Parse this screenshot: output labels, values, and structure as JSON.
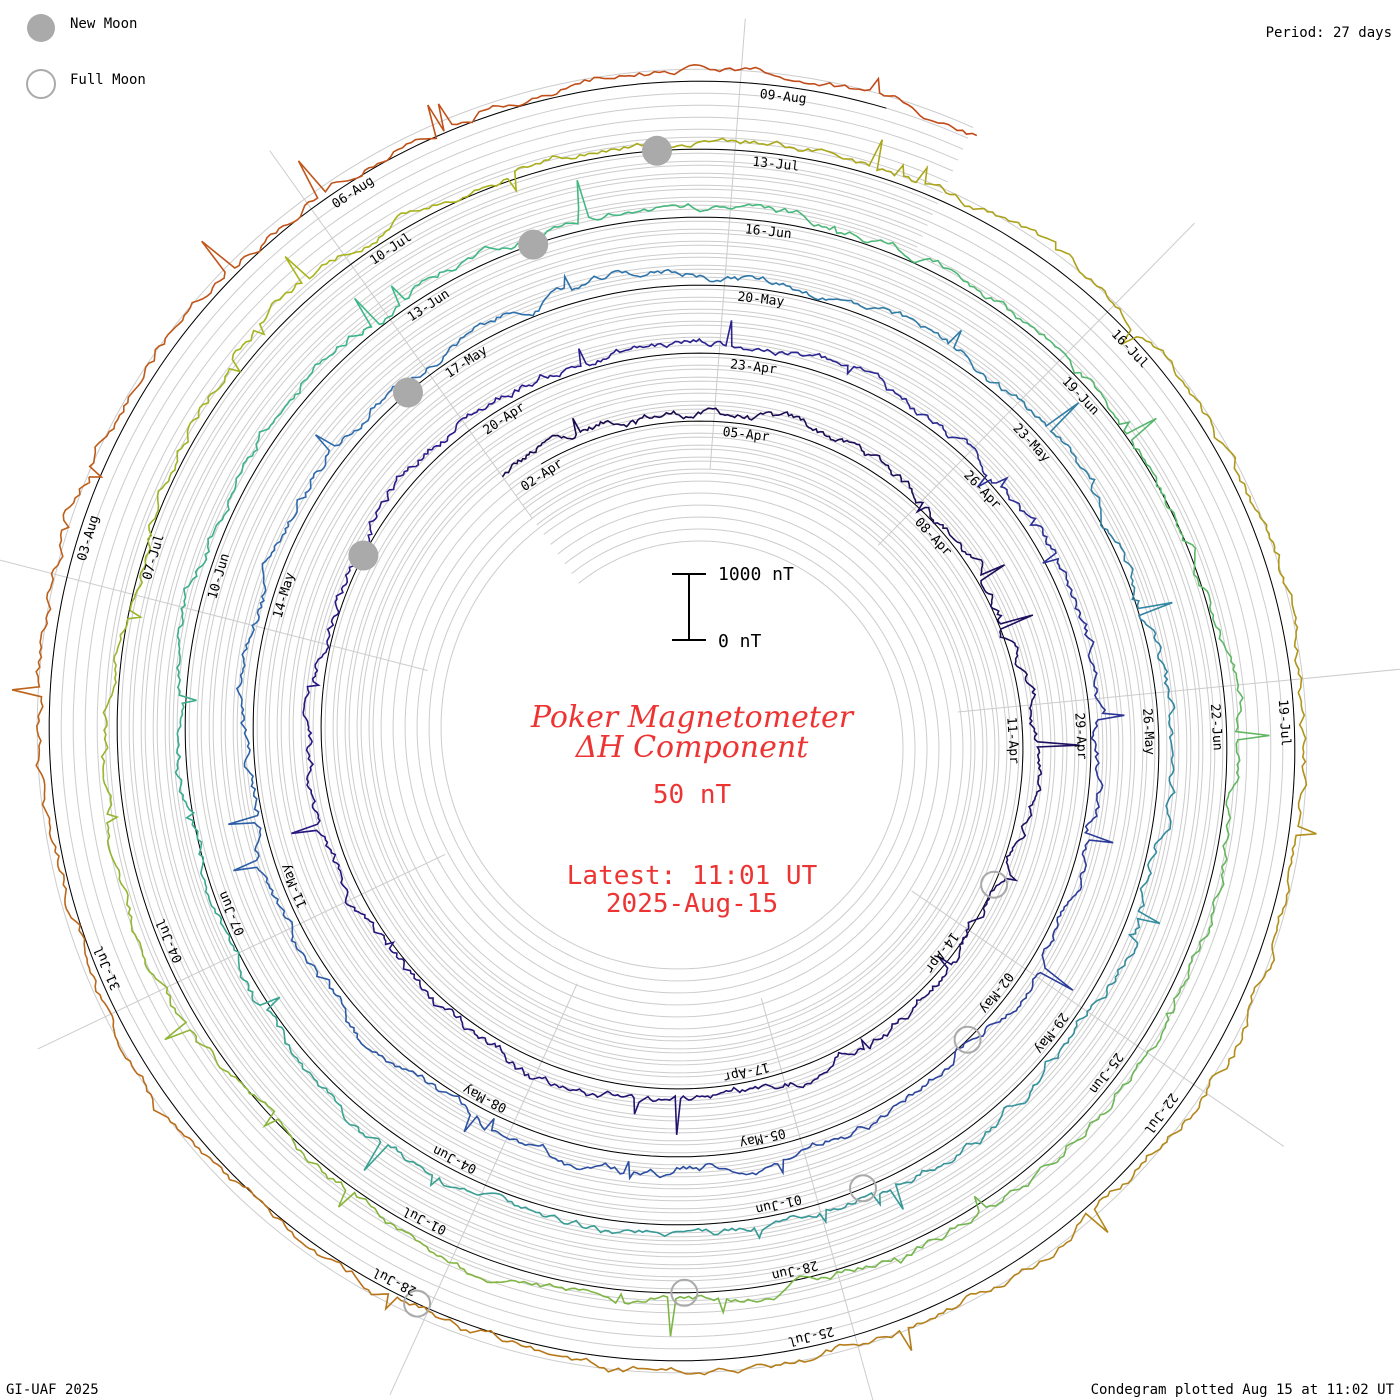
{
  "legend": {
    "new_moon_label": "New Moon",
    "full_moon_label": "Full Moon",
    "new_moon_color": "#aaaaaa",
    "full_moon_color": "#aaaaaa"
  },
  "period_label": "Period: 27 days",
  "footer_left": "GI-UAF 2025",
  "footer_right": "Condegram plotted Aug 15 at 11:02 UT",
  "title": {
    "line1": "Poker Magnetometer",
    "line2": "ΔH Component",
    "color": "#ee3333"
  },
  "scale_info": {
    "value": "50 nT",
    "bar_top_label": "1000 nT",
    "bar_bottom_label": "0 nT"
  },
  "latest": {
    "line1": "Latest: 11:01 UT",
    "line2": "2025-Aug-15"
  },
  "chart_data": {
    "type": "condegram-spiral",
    "period_days": 27,
    "component": "ΔH",
    "units": "nT",
    "scale_bar_nT": [
      0,
      1000
    ],
    "rotations": [
      {
        "index": 0,
        "color": "#1a0a4a",
        "labels": [
          "02-Apr",
          "05-Apr",
          "08-Apr",
          "11-Apr",
          "14-Apr",
          "17-Apr"
        ]
      },
      {
        "index": 1,
        "color": "#2a1a8c",
        "labels": [
          "20-Apr",
          "23-Apr",
          "26-Apr",
          "29-Apr",
          "02-May",
          "05-May",
          "08-May",
          "11-May",
          "14-May"
        ]
      },
      {
        "index": 2,
        "color": "#2e6fae",
        "labels": [
          "17-May",
          "20-May",
          "23-May",
          "26-May",
          "29-May",
          "01-Jun",
          "04-Jun",
          "07-Jun",
          "10-Jun"
        ]
      },
      {
        "index": 3,
        "color": "#3cb888",
        "labels": [
          "13-Jun",
          "16-Jun",
          "19-Jun",
          "22-Jun",
          "25-Jun",
          "28-Jun",
          "01-Jul",
          "04-Jul",
          "07-Jul"
        ]
      },
      {
        "index": 4,
        "color": "#a8b41a",
        "labels": [
          "10-Jul",
          "13-Jul",
          "16-Jul",
          "19-Jul",
          "22-Jul",
          "25-Jul",
          "28-Jul",
          "31-Jul",
          "03-Aug"
        ]
      },
      {
        "index": 5,
        "color": "#c0541a",
        "labels": [
          "06-Aug",
          "09-Aug"
        ]
      }
    ],
    "end_color": "#cc1111",
    "moon_phases": {
      "new_moon": [
        "27-Apr",
        "27-May",
        "25-Jun",
        "24-Jul"
      ],
      "full_moon": [
        "13-Apr",
        "12-May",
        "11-Jun",
        "10-Jul",
        "09-Aug"
      ]
    }
  }
}
